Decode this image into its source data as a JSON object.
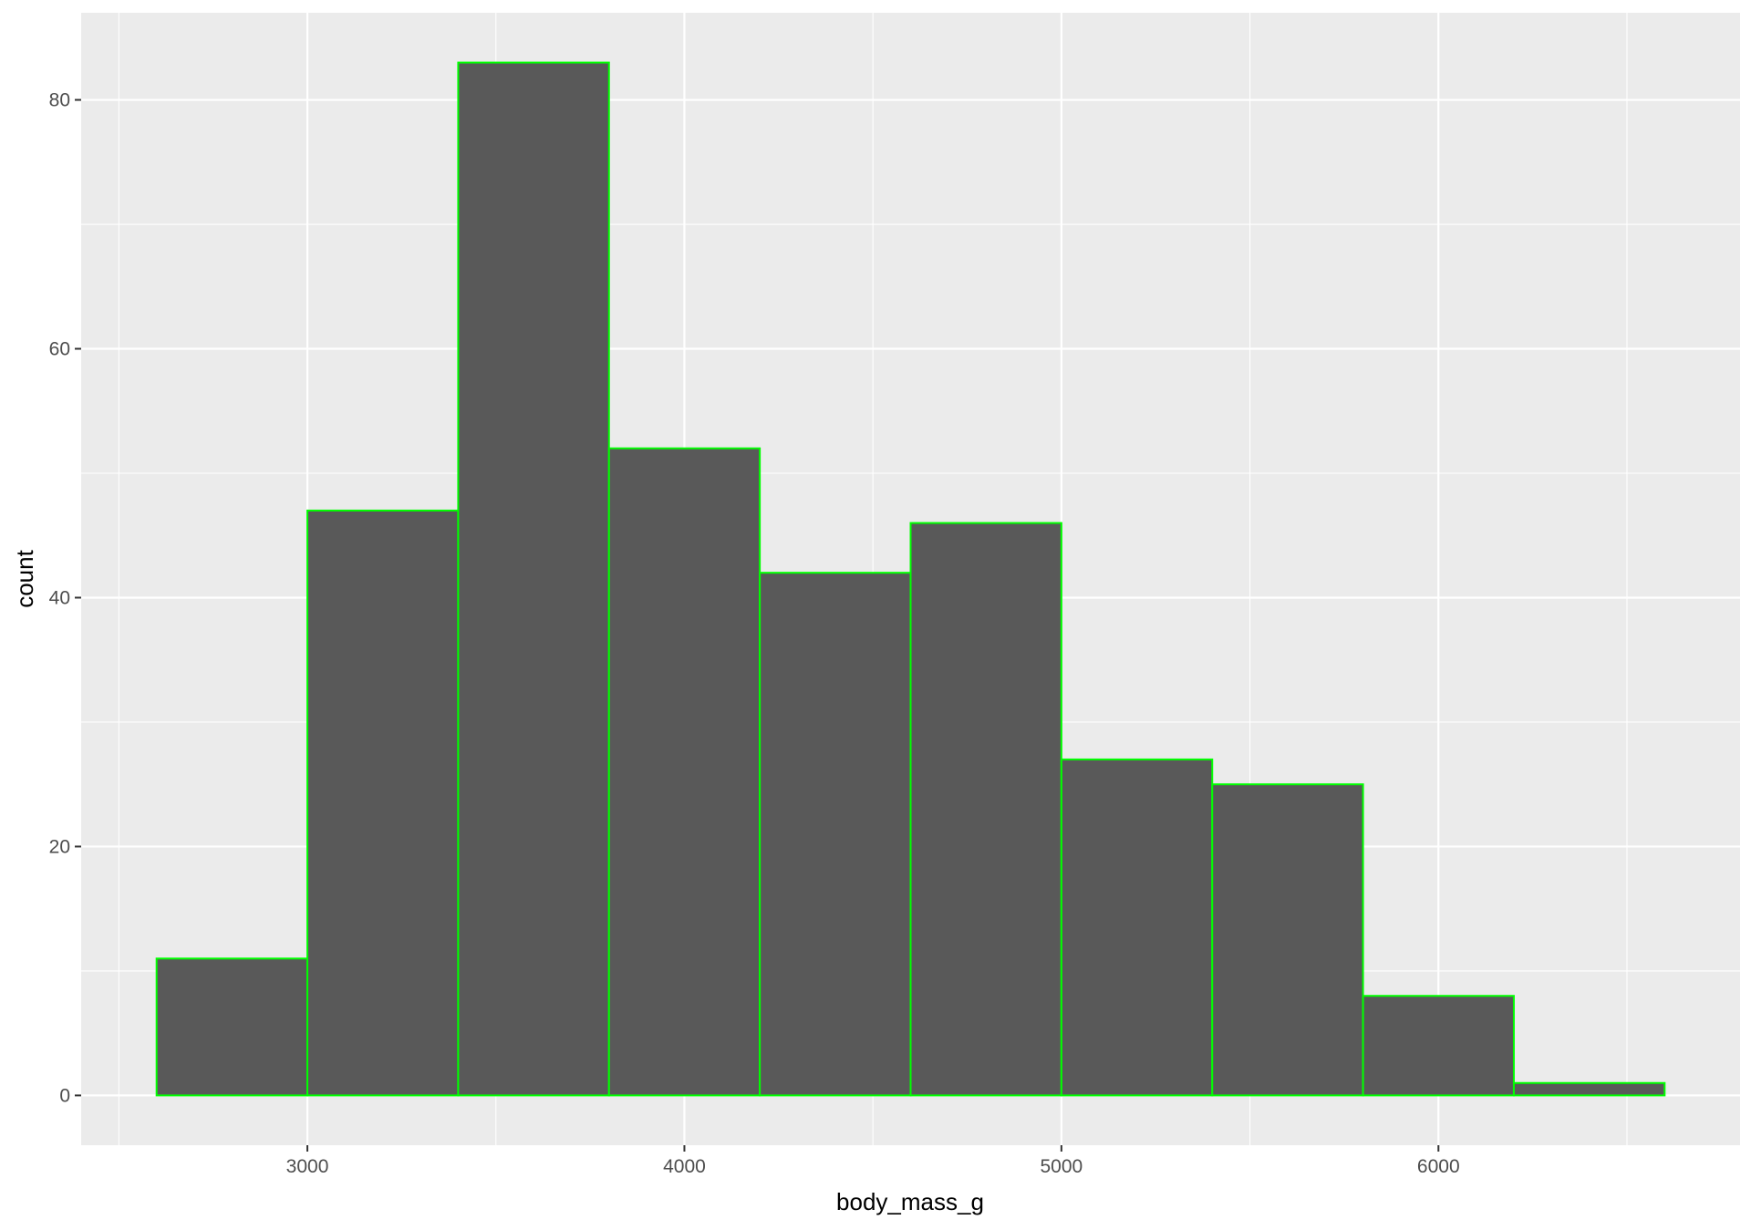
{
  "chart_data": {
    "type": "bar",
    "subtype": "histogram",
    "xlabel": "body_mass_g",
    "ylabel": "count",
    "bins": [
      {
        "x0": 2600,
        "x1": 3000,
        "count": 11
      },
      {
        "x0": 3000,
        "x1": 3400,
        "count": 47
      },
      {
        "x0": 3400,
        "x1": 3800,
        "count": 83
      },
      {
        "x0": 3800,
        "x1": 4200,
        "count": 52
      },
      {
        "x0": 4200,
        "x1": 4600,
        "count": 42
      },
      {
        "x0": 4600,
        "x1": 5000,
        "count": 46
      },
      {
        "x0": 5000,
        "x1": 5400,
        "count": 27
      },
      {
        "x0": 5400,
        "x1": 5800,
        "count": 25
      },
      {
        "x0": 5800,
        "x1": 6200,
        "count": 8
      },
      {
        "x0": 6200,
        "x1": 6600,
        "count": 1
      }
    ],
    "xlim": [
      2400,
      6800
    ],
    "ylim": [
      -4,
      87
    ],
    "x_ticks": [
      3000,
      4000,
      5000,
      6000
    ],
    "x_tick_labels": [
      "3000",
      "4000",
      "5000",
      "6000"
    ],
    "x_minor_ticks": [
      2500,
      3500,
      4500,
      5500,
      6500
    ],
    "y_ticks": [
      0,
      20,
      40,
      60,
      80
    ],
    "y_tick_labels": [
      "0",
      "20",
      "40",
      "60",
      "80"
    ],
    "y_minor_ticks": [
      10,
      30,
      50,
      70
    ],
    "grid": true,
    "legend": "none",
    "colors": {
      "panel_background": "#ebebeb",
      "grid_line": "#ffffff",
      "bar_fill": "#595959",
      "bar_outline": "#00ff00",
      "tick_mark": "#333333",
      "tick_label": "#4d4d4d",
      "axis_title": "#000000"
    }
  }
}
